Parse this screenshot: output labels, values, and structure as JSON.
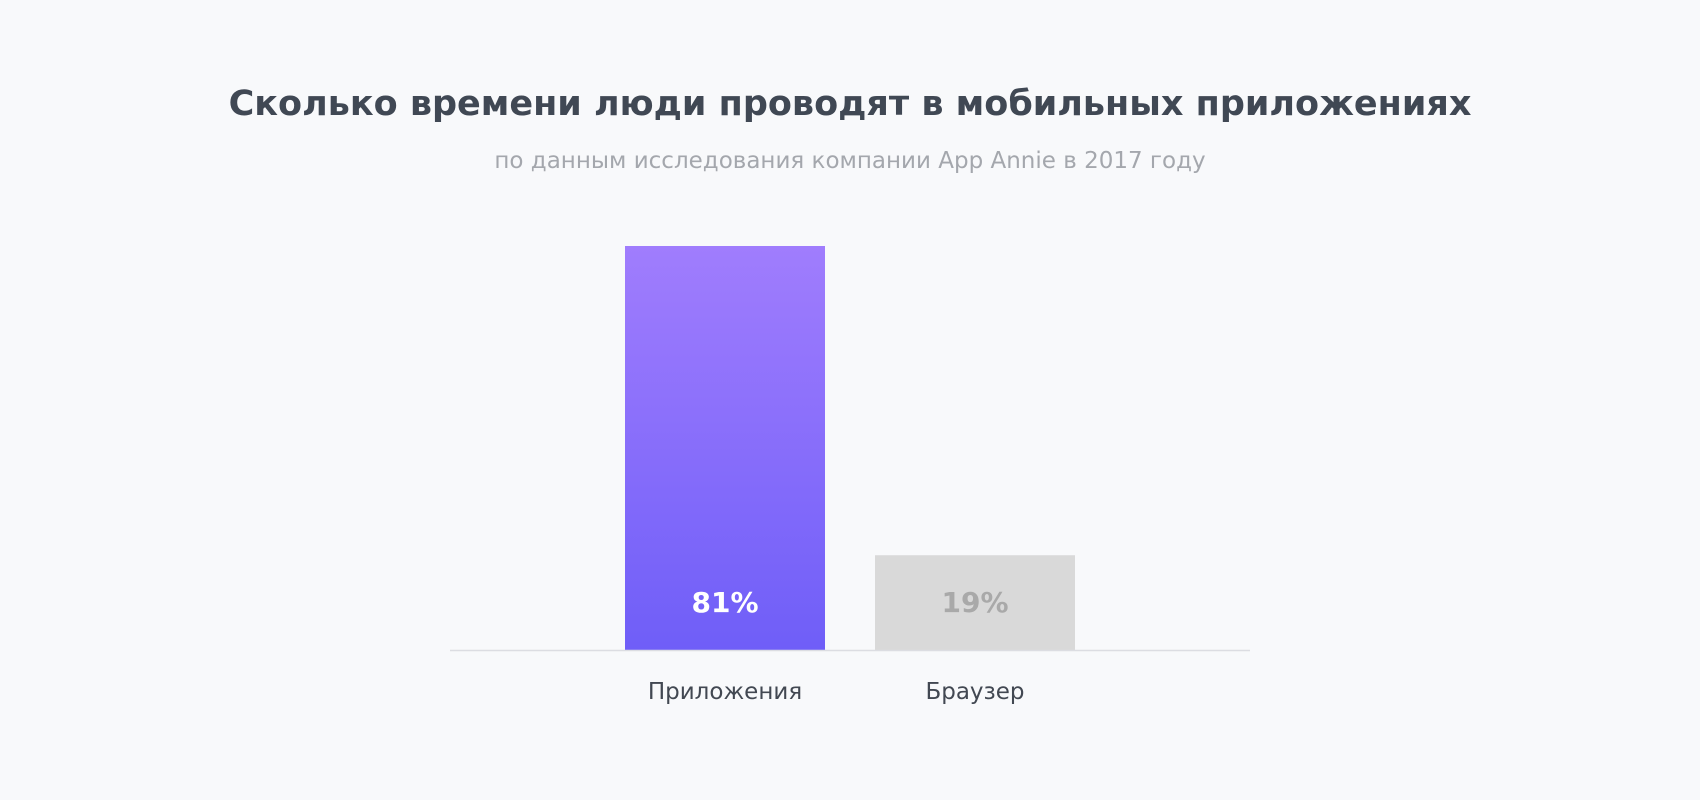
{
  "chart_data": {
    "type": "bar",
    "title": "Сколько времени люди проводят в мобильных приложениях",
    "subtitle": "по данным исследования компании App Annie в 2017 году",
    "categories": [
      "Приложения",
      "Браузер"
    ],
    "values": [
      81,
      19
    ],
    "value_labels": [
      "81%",
      "19%"
    ],
    "ylim": [
      0,
      81
    ],
    "grid": false,
    "colors": {
      "highlight_top": "#a07dfd",
      "highlight_bottom": "#6f5ef8",
      "muted_bar": "#d9d9d9",
      "highlight_label": "#ffffff",
      "muted_label": "#a9a9a9",
      "category_label": "#424852",
      "axis_line": "#dcdde2"
    }
  }
}
